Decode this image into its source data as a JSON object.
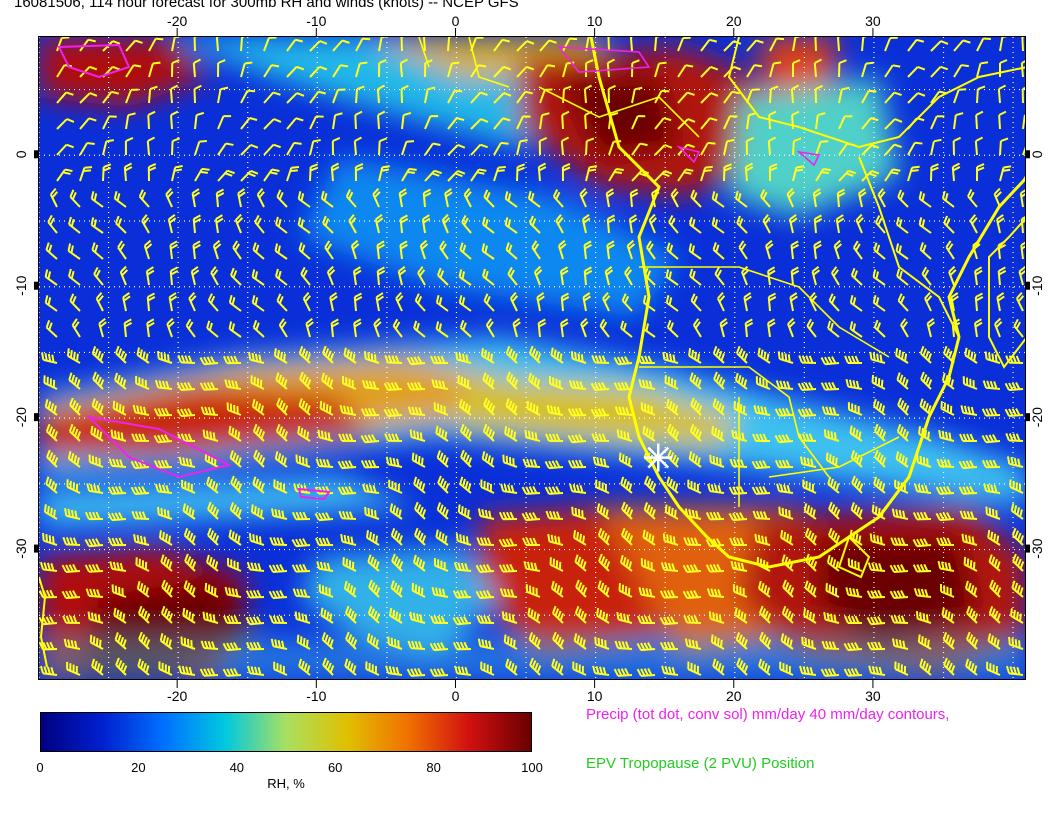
{
  "title": "16081506, 114 hour forecast for 300mb RH and winds (knots) -- NCEP GFS",
  "map": {
    "lon_range": [
      -30,
      41
    ],
    "lat_range": [
      -40,
      9
    ],
    "x_ticks": [
      -20,
      -10,
      0,
      10,
      20,
      30
    ],
    "y_ticks": [
      0,
      -10,
      -20,
      -30
    ],
    "marker": {
      "lon": 14.5,
      "lat": -23,
      "shape": "star",
      "color": "#ffffff"
    },
    "colors": {
      "coast": "#ffff00",
      "barb": "#ffff22",
      "precip_contour": "#ee22ee",
      "grid": "#ffffff"
    }
  },
  "colorbar": {
    "label": "RH, %",
    "ticks": [
      0,
      20,
      40,
      60,
      80,
      100
    ],
    "stops": [
      "#00007f",
      "#0020d0",
      "#0070ff",
      "#00c8e0",
      "#a8e060",
      "#e0c000",
      "#f07000",
      "#d01010",
      "#6a0000"
    ]
  },
  "legend": {
    "line1": "Precip (tot dot, conv sol) mm/day 40 mm/day contours,",
    "line2": "EPV Tropopause (2 PVU) Position"
  }
}
